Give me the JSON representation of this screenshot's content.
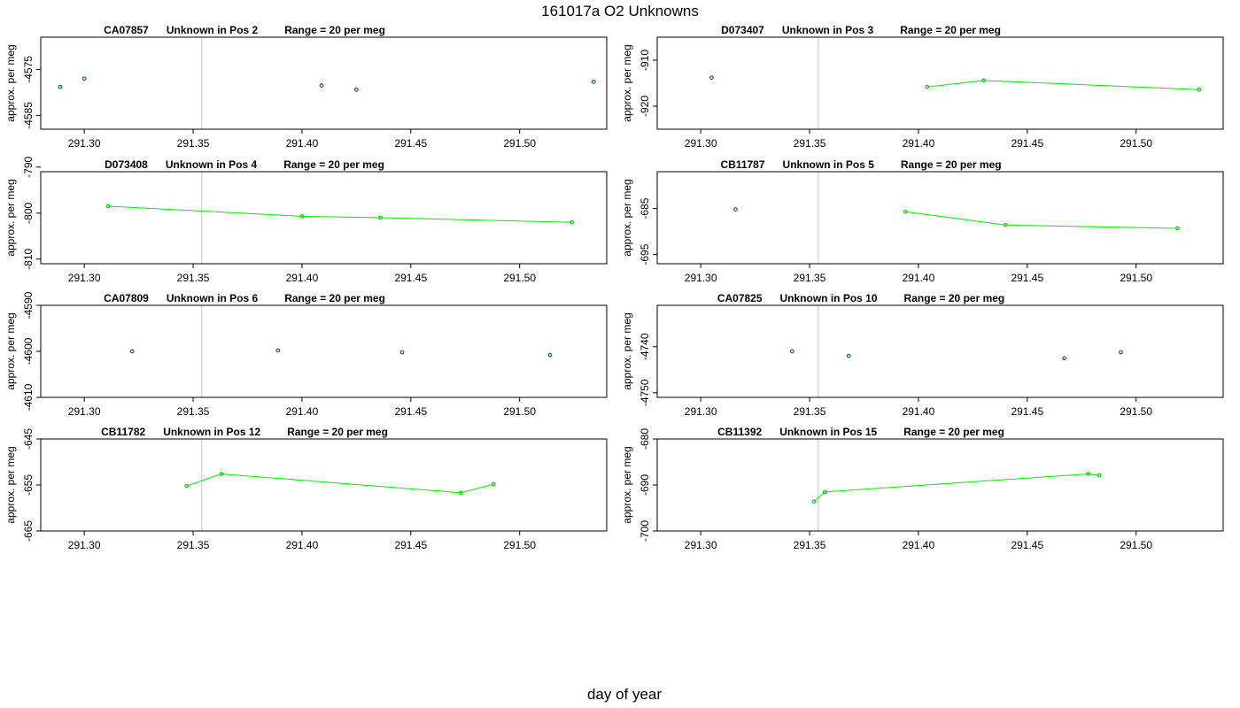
{
  "page": {
    "title": "161017a  O2 Unknowns",
    "xlabel": "day of year"
  },
  "colors": {
    "line": "#00ee00",
    "point_first": "#006400",
    "point_later": "#00cc00",
    "reference_line": "#c8c8c8",
    "frame": "#000000"
  },
  "chart_data": [
    {
      "type": "scatter",
      "sample": "CA07857",
      "label": "Unknown in Pos 2",
      "range_text": "Range = 20 per meg",
      "ylabel": "approx. per meg",
      "xlim": [
        291.28,
        291.54
      ],
      "ylim": [
        -4588,
        -4568
      ],
      "xticks": [
        "291.30",
        "291.35",
        "291.40",
        "291.45",
        "291.50"
      ],
      "yticks": [
        "-4575",
        "-4585"
      ],
      "reference_x": [
        291.354
      ],
      "series": [
        {
          "x": [
            291.289
          ],
          "y": [
            -4578.8
          ],
          "connected": false
        },
        {
          "x": [
            291.3
          ],
          "y": [
            -4577.0
          ],
          "connected": false
        },
        {
          "x": [
            291.409
          ],
          "y": [
            -4578.5
          ],
          "connected": false
        },
        {
          "x": [
            291.425
          ],
          "y": [
            -4579.4
          ],
          "connected": false
        },
        {
          "x": [
            291.534
          ],
          "y": [
            -4577.7
          ],
          "connected": false
        }
      ]
    },
    {
      "type": "scatter",
      "sample": "D073407",
      "label": "Unknown in Pos 3",
      "range_text": "Range = 20 per meg",
      "ylabel": "approx. per meg",
      "xlim": [
        291.28,
        291.54
      ],
      "ylim": [
        -925,
        -905
      ],
      "xticks": [
        "291.30",
        "291.35",
        "291.40",
        "291.45",
        "291.50"
      ],
      "yticks": [
        "-910",
        "-920"
      ],
      "reference_x": [
        291.354,
        291.54
      ],
      "series": [
        {
          "x": [
            291.305
          ],
          "y": [
            -913.8
          ],
          "connected": false
        },
        {
          "x": [
            291.404,
            291.43,
            291.529
          ],
          "y": [
            -915.8,
            -914.4,
            -916.4
          ],
          "connected": true
        }
      ]
    },
    {
      "type": "line",
      "sample": "D073408",
      "label": "Unknown in Pos 4",
      "range_text": "Range = 20 per meg",
      "ylabel": "approx. per meg",
      "xlim": [
        291.28,
        291.54
      ],
      "ylim": [
        -811,
        -791
      ],
      "xticks": [
        "291.30",
        "291.35",
        "291.40",
        "291.45",
        "291.50"
      ],
      "yticks": [
        "-790",
        "-800",
        "-810"
      ],
      "reference_x": [
        291.354,
        291.54
      ],
      "series": [
        {
          "x": [
            291.311,
            291.4,
            291.436,
            291.524
          ],
          "y": [
            -798.5,
            -800.7,
            -801.0,
            -802.0
          ],
          "connected": true
        }
      ]
    },
    {
      "type": "scatter",
      "sample": "CB11787",
      "label": "Unknown in Pos 5",
      "range_text": "Range = 20 per meg",
      "ylabel": "approx. per meg",
      "xlim": [
        291.28,
        291.54
      ],
      "ylim": [
        -697,
        -677
      ],
      "xticks": [
        "291.30",
        "291.35",
        "291.40",
        "291.45",
        "291.50"
      ],
      "yticks": [
        "-685",
        "-695"
      ],
      "reference_x": [
        291.354,
        291.54
      ],
      "series": [
        {
          "x": [
            291.316
          ],
          "y": [
            -685.2
          ],
          "connected": false
        },
        {
          "x": [
            291.394,
            291.44,
            291.519
          ],
          "y": [
            -685.7,
            -688.6,
            -689.3
          ],
          "connected": true
        }
      ]
    },
    {
      "type": "scatter",
      "sample": "CA07809",
      "label": "Unknown in Pos 6",
      "range_text": "Range = 20 per meg",
      "ylabel": "approx. per meg",
      "xlim": [
        291.28,
        291.54
      ],
      "ylim": [
        -4610,
        -4590
      ],
      "xticks": [
        "291.30",
        "291.35",
        "291.40",
        "291.45",
        "291.50"
      ],
      "yticks": [
        "-4590",
        "-4600",
        "-4610"
      ],
      "reference_x": [
        291.354,
        291.54
      ],
      "series": [
        {
          "x": [
            291.322
          ],
          "y": [
            -4600.0
          ],
          "connected": false
        },
        {
          "x": [
            291.389
          ],
          "y": [
            -4599.8
          ],
          "connected": false
        },
        {
          "x": [
            291.446
          ],
          "y": [
            -4600.2
          ],
          "connected": false
        },
        {
          "x": [
            291.514
          ],
          "y": [
            -4600.8
          ],
          "connected": false
        }
      ]
    },
    {
      "type": "scatter",
      "sample": "CA07825",
      "label": "Unknown in Pos 10",
      "range_text": "Range = 20 per meg",
      "ylabel": "approx. per meg",
      "xlim": [
        291.28,
        291.54
      ],
      "ylim": [
        -4751,
        -4731
      ],
      "xticks": [
        "291.30",
        "291.35",
        "291.40",
        "291.45",
        "291.50"
      ],
      "yticks": [
        "-4740",
        "-4750"
      ],
      "reference_x": [
        291.354,
        291.54
      ],
      "series": [
        {
          "x": [
            291.342
          ],
          "y": [
            -4741.0
          ],
          "connected": false
        },
        {
          "x": [
            291.368
          ],
          "y": [
            -4742.0
          ],
          "connected": false
        },
        {
          "x": [
            291.467
          ],
          "y": [
            -4742.5
          ],
          "connected": false
        },
        {
          "x": [
            291.493
          ],
          "y": [
            -4741.2
          ],
          "connected": false
        }
      ]
    },
    {
      "type": "line",
      "sample": "CB11782",
      "label": "Unknown in Pos 12",
      "range_text": "Range = 20 per meg",
      "ylabel": "approx. per meg",
      "xlim": [
        291.28,
        291.54
      ],
      "ylim": [
        -665,
        -645
      ],
      "xticks": [
        "291.30",
        "291.35",
        "291.40",
        "291.45",
        "291.50"
      ],
      "yticks": [
        "-645",
        "-655",
        "-665"
      ],
      "reference_x": [
        291.354,
        291.54
      ],
      "series": [
        {
          "x": [
            291.347,
            291.363,
            291.473,
            291.488
          ],
          "y": [
            -655.2,
            -652.6,
            -656.7,
            -654.8
          ],
          "connected": true
        }
      ]
    },
    {
      "type": "line",
      "sample": "CB11392",
      "label": "Unknown in Pos 15",
      "range_text": "Range = 20 per meg",
      "ylabel": "approx. per meg",
      "xlim": [
        291.28,
        291.54
      ],
      "ylim": [
        -700,
        -680
      ],
      "xticks": [
        "291.30",
        "291.35",
        "291.40",
        "291.45",
        "291.50"
      ],
      "yticks": [
        "-680",
        "-690",
        "-700"
      ],
      "reference_x": [
        291.354,
        291.54
      ],
      "series": [
        {
          "x": [
            291.352,
            291.357,
            291.478,
            291.483
          ],
          "y": [
            -693.6,
            -691.5,
            -687.6,
            -687.9
          ],
          "connected": true
        }
      ]
    }
  ]
}
